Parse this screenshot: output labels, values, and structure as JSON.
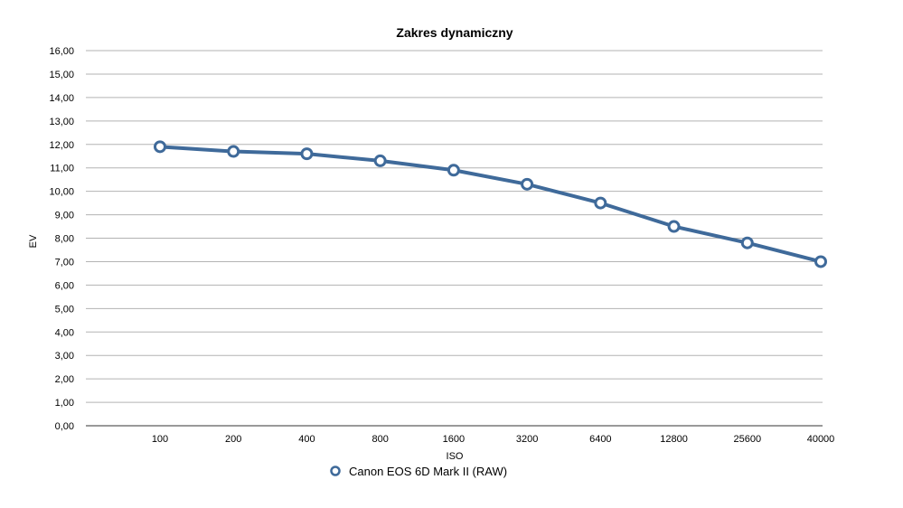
{
  "chart_data": {
    "type": "line",
    "title": "Zakres dynamiczny",
    "xlabel": "ISO",
    "ylabel": "EV",
    "categories": [
      "100",
      "200",
      "400",
      "800",
      "1600",
      "3200",
      "6400",
      "12800",
      "25600",
      "40000"
    ],
    "series": [
      {
        "name": "Canon EOS 6D Mark II (RAW)",
        "values": [
          11.9,
          11.7,
          11.6,
          11.3,
          10.9,
          10.3,
          9.5,
          8.5,
          7.8,
          7.0
        ],
        "color": "#3f6a9a"
      }
    ],
    "ylim": [
      0,
      16
    ],
    "yticks": [
      "0,00",
      "1,00",
      "2,00",
      "3,00",
      "4,00",
      "5,00",
      "6,00",
      "7,00",
      "8,00",
      "9,00",
      "10,00",
      "11,00",
      "12,00",
      "13,00",
      "14,00",
      "15,00",
      "16,00"
    ],
    "grid": true,
    "legend": "bottom-center"
  }
}
